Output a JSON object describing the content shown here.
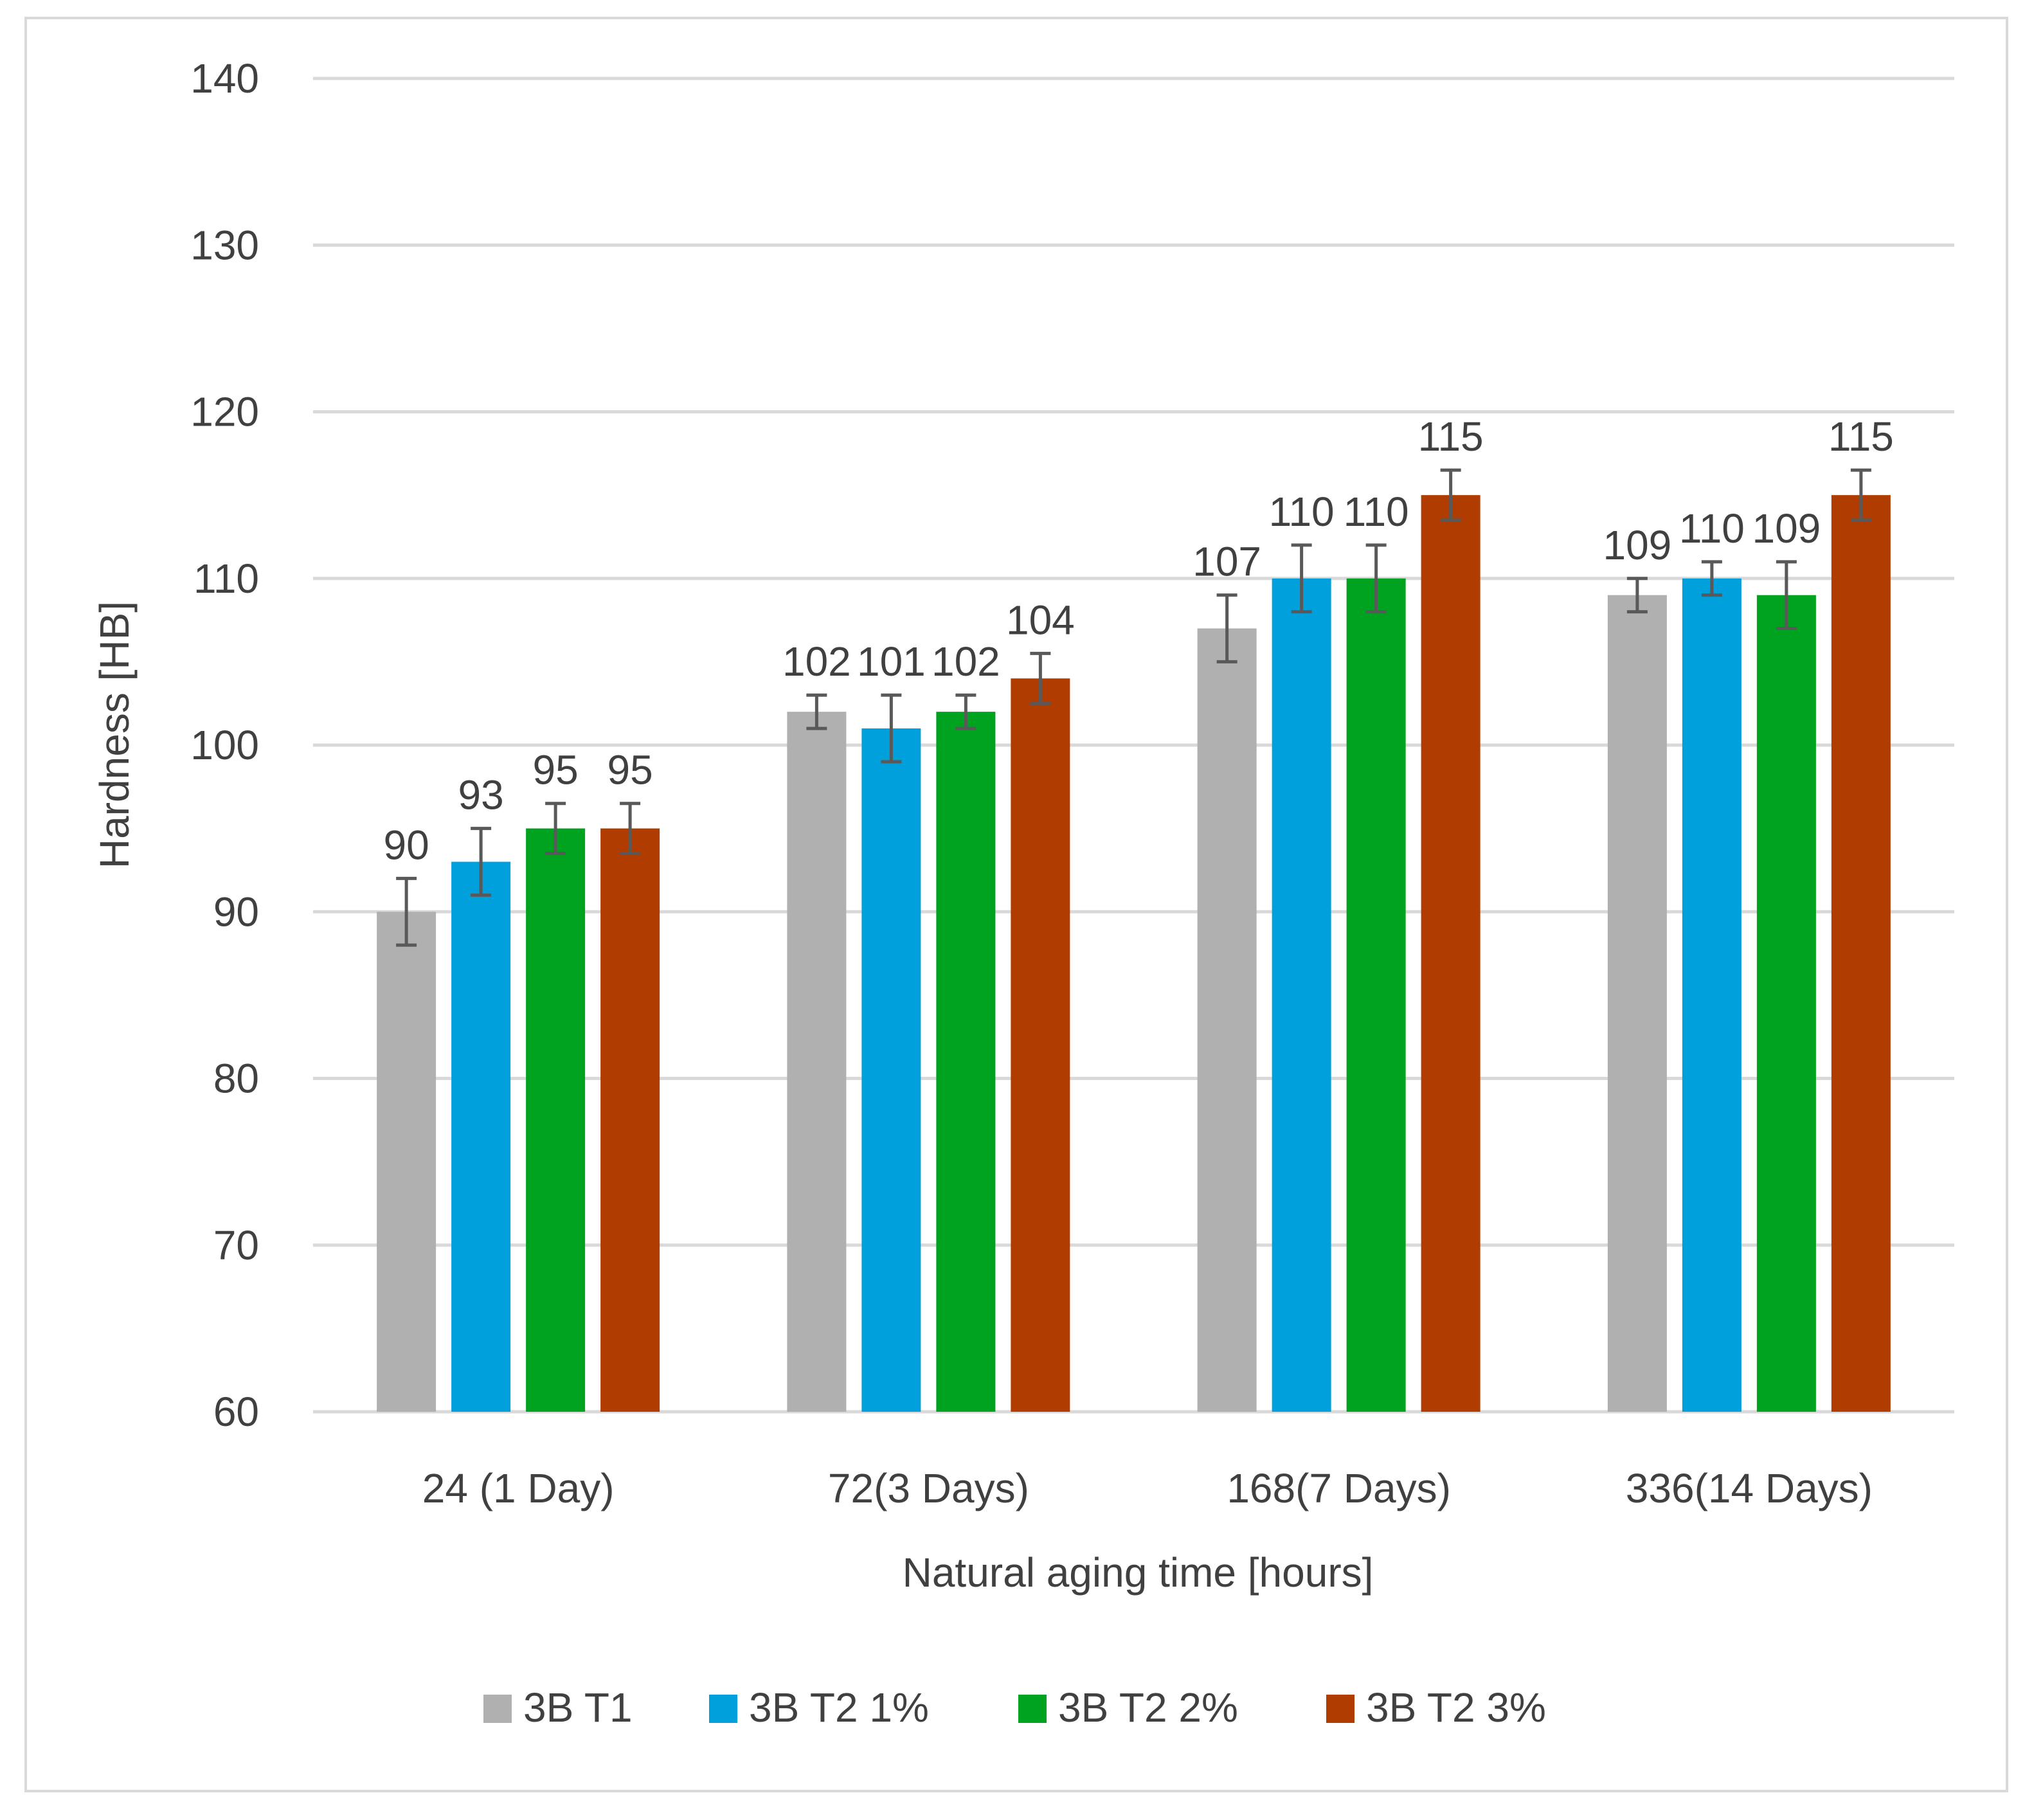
{
  "chart_data": {
    "type": "bar",
    "title": "",
    "xlabel": "Natural aging time [hours]",
    "ylabel": "Hardness [HB]",
    "ylim": [
      60,
      140
    ],
    "yticks": [
      60,
      70,
      80,
      90,
      100,
      110,
      120,
      130,
      140
    ],
    "grid": true,
    "legend_position": "bottom",
    "categories": [
      "24 (1 Day)",
      "72(3 Days)",
      "168(7 Days)",
      "336(14 Days)"
    ],
    "series": [
      {
        "name": "3B T1",
        "color": "#b0b0b0",
        "values": [
          90,
          102,
          107,
          109
        ],
        "errors": [
          2,
          1,
          2,
          1
        ]
      },
      {
        "name": "3B T2 1%",
        "color": "#00a0dc",
        "values": [
          93,
          101,
          110,
          110
        ],
        "errors": [
          2,
          2,
          2,
          1
        ]
      },
      {
        "name": "3B T2 2%",
        "color": "#00a320",
        "values": [
          95,
          102,
          110,
          109
        ],
        "errors": [
          1.5,
          1,
          2,
          2
        ]
      },
      {
        "name": "3B T2 3%",
        "color": "#b03c00",
        "values": [
          95,
          104,
          115,
          115
        ],
        "errors": [
          1.5,
          1.5,
          1.5,
          1.5
        ]
      }
    ]
  }
}
